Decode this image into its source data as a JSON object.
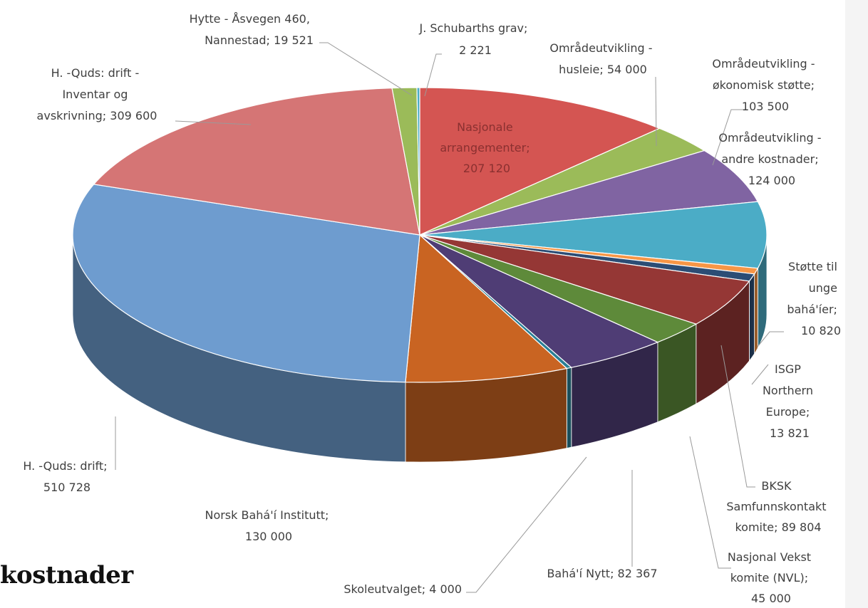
{
  "title_fragment": "kostnader",
  "chart_data": {
    "type": "pie",
    "variant": "3d",
    "slices": [
      {
        "label": "Nasjonale arrangementer; 207 120",
        "value": 207120,
        "color": "#d45552"
      },
      {
        "label": "Områdeutvikling - husleie; 54 000",
        "value": 54000,
        "color": "#9bbb59"
      },
      {
        "label": "Områdeutvikling - økonomisk støtte; 103 500",
        "value": 103500,
        "color": "#8064a2"
      },
      {
        "label": "Områdeutvikling - andre kostnader; 124 000",
        "value": 124000,
        "color": "#4bacc6"
      },
      {
        "label": "Støtte til unge bahá'íer; 10 820",
        "value": 10820,
        "color": "#f79646"
      },
      {
        "label": "ISGP Northern Europe; 13 821",
        "value": 13821,
        "color": "#2c4d75"
      },
      {
        "label": "BKSK Samfunnskontakt komite; 89 804",
        "value": 89804,
        "color": "#953735"
      },
      {
        "label": "Nasjonal Vekst komite (NVL); 45 000",
        "value": 45000,
        "color": "#5e8a3a"
      },
      {
        "label": "Bahá'í Nytt; 82 367",
        "value": 82367,
        "color": "#4f3d75"
      },
      {
        "label": "Skoleutvalget; 4 000",
        "value": 4000,
        "color": "#2a7f95"
      },
      {
        "label": "Norsk Bahá'í Institutt; 130 000",
        "value": 130000,
        "color": "#c96422"
      },
      {
        "label": "H. -Quds: drift; 510 728",
        "value": 510728,
        "color": "#6e9ccf"
      },
      {
        "label": "H. -Quds: drift - Inventar og avskrivning; 309 600",
        "value": 309600,
        "color": "#d57575"
      },
      {
        "label": "Hytte - Åsvegen 460, Nannestad; 19 521",
        "value": 19521,
        "color": "#9bbb59"
      },
      {
        "label": "J. Schubarths grav; 2 221",
        "value": 2221,
        "color": "#4bacc6"
      }
    ],
    "label_lines": {
      "nasjonale": [
        "Nasjonale",
        "arrangementer;",
        "207 120"
      ],
      "husleie": [
        "Områdeutvikling -",
        "husleie;  54 000"
      ],
      "okonomisk": [
        "Områdeutvikling -",
        "økonomisk støtte;",
        "103 500"
      ],
      "andre": [
        "Områdeutvikling -",
        "andre kostnader;",
        "124 000"
      ],
      "stotte": [
        "Støtte til",
        "unge",
        "bahá'íer;",
        "10 820"
      ],
      "isgp": [
        "ISGP",
        "Northern",
        "Europe;",
        "13 821"
      ],
      "bksk": [
        "BKSK",
        "Samfunnskontakt",
        "komite;  89 804"
      ],
      "nvl": [
        "Nasjonal Vekst",
        "komite (NVL);",
        "45 000"
      ],
      "nytt": [
        "Bahá'í Nytt;  82 367"
      ],
      "skole": [
        "Skoleutvalget;  4 000"
      ],
      "institutt": [
        "Norsk Bahá'í Institutt;",
        "130 000"
      ],
      "drift": [
        "H. -Quds: drift;",
        "510 728"
      ],
      "inventar": [
        "H. -Quds: drift -",
        "Inventar og",
        "avskrivning;  309 600"
      ],
      "hytte": [
        "Hytte - Åsvegen 460,",
        "Nannestad;  19 521"
      ],
      "schubarth": [
        "J. Schubarths grav;",
        "2 221"
      ]
    }
  }
}
